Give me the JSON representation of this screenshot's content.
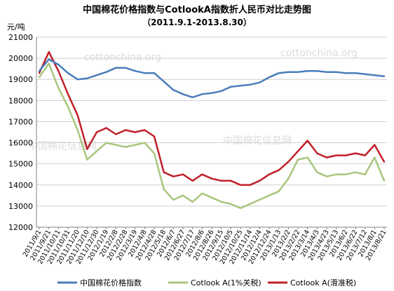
{
  "chart_data": {
    "type": "line",
    "title": "中国棉花价格指数与CotlookA指数折人民币对比走势图",
    "subtitle": "（2011.9.1-2013.8.30）",
    "ylabel": "元/吨",
    "ylim": [
      12000,
      21000
    ],
    "yticks": [
      "12000",
      "13000",
      "14000",
      "15000",
      "16000",
      "17000",
      "18000",
      "19000",
      "20000",
      "21000"
    ],
    "x": [
      "2011/9/1",
      "2011/9/21",
      "2011/10/11",
      "2011/10/31",
      "2011/11/20",
      "2011/12/10",
      "2011/12/30",
      "2012/1/19",
      "2012/2/8",
      "2012/2/28",
      "2012/3/19",
      "2012/4/8",
      "2012/4/28",
      "2012/5/18",
      "2012/6/7",
      "2012/6/27",
      "2012/7/17",
      "2012/8/6",
      "2012/8/26",
      "2012/9/15",
      "2012/10/5",
      "2012/10/25",
      "2012/11/14",
      "2012/12/4",
      "2012/12/24",
      "2013/1/13",
      "2013/2/2",
      "2013/2/22",
      "2013/3/14",
      "2013/4/3",
      "2013/4/23",
      "2013/5/13",
      "2013/6/2",
      "2013/6/22",
      "2013/7/12",
      "2013/8/1",
      "2013/8/21"
    ],
    "series": [
      {
        "name": "中国棉花价格指数",
        "color": "#4a7ebb",
        "values": [
          19400,
          19950,
          19700,
          19300,
          19000,
          19050,
          19200,
          19350,
          19550,
          19550,
          19400,
          19300,
          19300,
          18900,
          18500,
          18300,
          18150,
          18300,
          18350,
          18450,
          18650,
          18700,
          18750,
          18850,
          19100,
          19300,
          19350,
          19350,
          19400,
          19400,
          19350,
          19350,
          19300,
          19300,
          19250,
          19200,
          19150
        ]
      },
      {
        "name": "Cotlook A(1%关税)",
        "color": "#a9c67e",
        "values": [
          19100,
          19750,
          18600,
          17700,
          16600,
          15200,
          15600,
          16000,
          15900,
          15800,
          15900,
          16000,
          15500,
          13800,
          13300,
          13500,
          13200,
          13600,
          13400,
          13200,
          13100,
          12900,
          13100,
          13300,
          13500,
          13700,
          14300,
          15200,
          15300,
          14600,
          14400,
          14500,
          14500,
          14600,
          14500,
          15300,
          14200
        ]
      },
      {
        "name": "Cotlook A(滑准税)",
        "color": "#c0202a",
        "values": [
          19300,
          20300,
          19400,
          18300,
          17300,
          15700,
          16500,
          16700,
          16400,
          16600,
          16500,
          16600,
          16300,
          14600,
          14400,
          14500,
          14200,
          14500,
          14300,
          14200,
          14200,
          14000,
          14000,
          14200,
          14500,
          14700,
          15100,
          15600,
          16100,
          15500,
          15300,
          15400,
          15400,
          15500,
          15400,
          15900,
          15100
        ]
      }
    ],
    "legend_position": "bottom",
    "grid": true
  },
  "watermarks": [
    "cottonchina.org",
    "cottonchina.org",
    "中国棉花信息网",
    "中国棉花信息网"
  ]
}
